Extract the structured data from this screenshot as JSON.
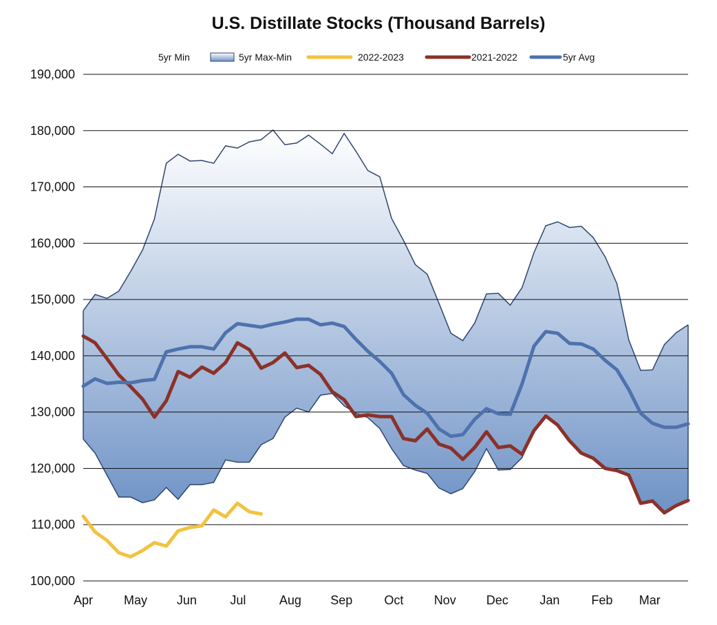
{
  "chart_data": {
    "type": "line",
    "title": "U.S. Distillate Stocks (Thousand Barrels)",
    "xlabel": "",
    "ylabel": "",
    "ylim": [
      100000,
      190000
    ],
    "yticks": [
      100000,
      110000,
      120000,
      130000,
      140000,
      150000,
      160000,
      170000,
      180000,
      190000
    ],
    "ytick_labels": [
      "100,000",
      "110,000",
      "120,000",
      "130,000",
      "140,000",
      "150,000",
      "160,000",
      "170,000",
      "180,000",
      "190,000"
    ],
    "x_unit": "week index from start of April",
    "xlim": [
      0,
      52
    ],
    "month_ticks": [
      {
        "label": "Apr",
        "week": 0
      },
      {
        "label": "May",
        "week": 4.5
      },
      {
        "label": "Jun",
        "week": 8.9
      },
      {
        "label": "Jul",
        "week": 13.3
      },
      {
        "label": "Aug",
        "week": 17.8
      },
      {
        "label": "Sep",
        "week": 22.2
      },
      {
        "label": "Oct",
        "week": 26.7
      },
      {
        "label": "Nov",
        "week": 31.1
      },
      {
        "label": "Dec",
        "week": 35.6
      },
      {
        "label": "Jan",
        "week": 40.1
      },
      {
        "label": "Feb",
        "week": 44.6
      },
      {
        "label": "Mar",
        "week": 48.7
      }
    ],
    "grid": true,
    "legend": {
      "placement": "top",
      "entries": [
        "5yr Min",
        "5yr Max-Min",
        "2022-2023",
        "2021-2022",
        "5yr Avg"
      ]
    },
    "band": {
      "name": "5yr Max-Min",
      "max": [
        148.0,
        150.9,
        150.2,
        151.5,
        155.0,
        158.8,
        164.3,
        174.2,
        175.8,
        174.6,
        174.7,
        174.2,
        177.3,
        176.9,
        178.0,
        178.4,
        180.1,
        177.5,
        177.8,
        179.2,
        177.6,
        175.9,
        179.5,
        176.3,
        172.9,
        171.8,
        164.4,
        160.5,
        156.2,
        154.5,
        149.3,
        144.0,
        142.7,
        145.8,
        151.0,
        151.1,
        149.0,
        152.1,
        158.3,
        163.1,
        163.8,
        162.8,
        163.0,
        161.0,
        157.6,
        152.8,
        142.8,
        137.4,
        137.5,
        142.0,
        144.1,
        145.5
      ],
      "min": [
        125.2,
        122.7,
        118.8,
        114.9,
        114.9,
        113.9,
        114.4,
        116.6,
        114.5,
        117.1,
        117.1,
        117.5,
        121.5,
        121.1,
        121.1,
        124.2,
        125.3,
        129.1,
        130.7,
        130.0,
        133.0,
        133.3,
        131.1,
        129.8,
        129.0,
        127.1,
        123.5,
        120.5,
        119.7,
        119.1,
        116.5,
        115.5,
        116.4,
        119.4,
        123.5,
        119.7,
        119.8,
        121.9,
        126.7,
        129.3,
        127.7,
        124.9,
        122.7,
        121.8,
        120.0,
        119.6,
        118.8,
        113.8,
        114.2,
        112.1,
        113.4,
        114.3
      ],
      "scale": 1000
    },
    "series": [
      {
        "name": "2022-2023",
        "color": "#f2c240",
        "scale": 1000,
        "values": [
          111.5,
          108.7,
          107.2,
          105.0,
          104.3,
          105.4,
          106.8,
          106.2,
          108.9,
          109.5,
          109.8,
          112.6,
          111.4,
          113.8,
          112.3,
          111.9
        ]
      },
      {
        "name": "2021-2022",
        "color": "#8b3129",
        "scale": 1000,
        "values": [
          143.5,
          142.3,
          139.5,
          136.6,
          134.5,
          132.3,
          129.1,
          132.0,
          137.2,
          136.2,
          138.0,
          136.9,
          138.8,
          142.3,
          141.1,
          137.8,
          138.8,
          140.5,
          137.9,
          138.3,
          136.7,
          133.6,
          132.2,
          129.2,
          129.5,
          129.2,
          129.2,
          125.3,
          124.9,
          127.0,
          124.3,
          123.6,
          121.6,
          123.7,
          126.5,
          123.7,
          124.0,
          122.5,
          126.7,
          129.3,
          127.7,
          124.9,
          122.7,
          121.8,
          120.0,
          119.6,
          118.8,
          113.8,
          114.2,
          112.1,
          113.4,
          114.3
        ]
      },
      {
        "name": "5yr Avg",
        "color": "#4e72ad",
        "scale": 1000,
        "values": [
          134.6,
          135.9,
          135.1,
          135.3,
          135.2,
          135.6,
          135.8,
          140.7,
          141.2,
          141.6,
          141.6,
          141.2,
          144.1,
          145.7,
          145.4,
          145.1,
          145.6,
          146.0,
          146.5,
          146.5,
          145.5,
          145.8,
          145.2,
          142.9,
          140.8,
          139.0,
          136.9,
          133.1,
          131.2,
          129.8,
          127.0,
          125.7,
          126.0,
          128.7,
          130.6,
          129.7,
          129.6,
          135.0,
          141.7,
          144.3,
          144.0,
          142.2,
          142.1,
          141.2,
          139.2,
          137.5,
          134.0,
          129.8,
          128.0,
          127.3,
          127.3,
          127.9
        ]
      }
    ],
    "band_colors": {
      "top": "#ffffff",
      "bottom": "#6e92c6",
      "edge": "#2e4470"
    }
  }
}
